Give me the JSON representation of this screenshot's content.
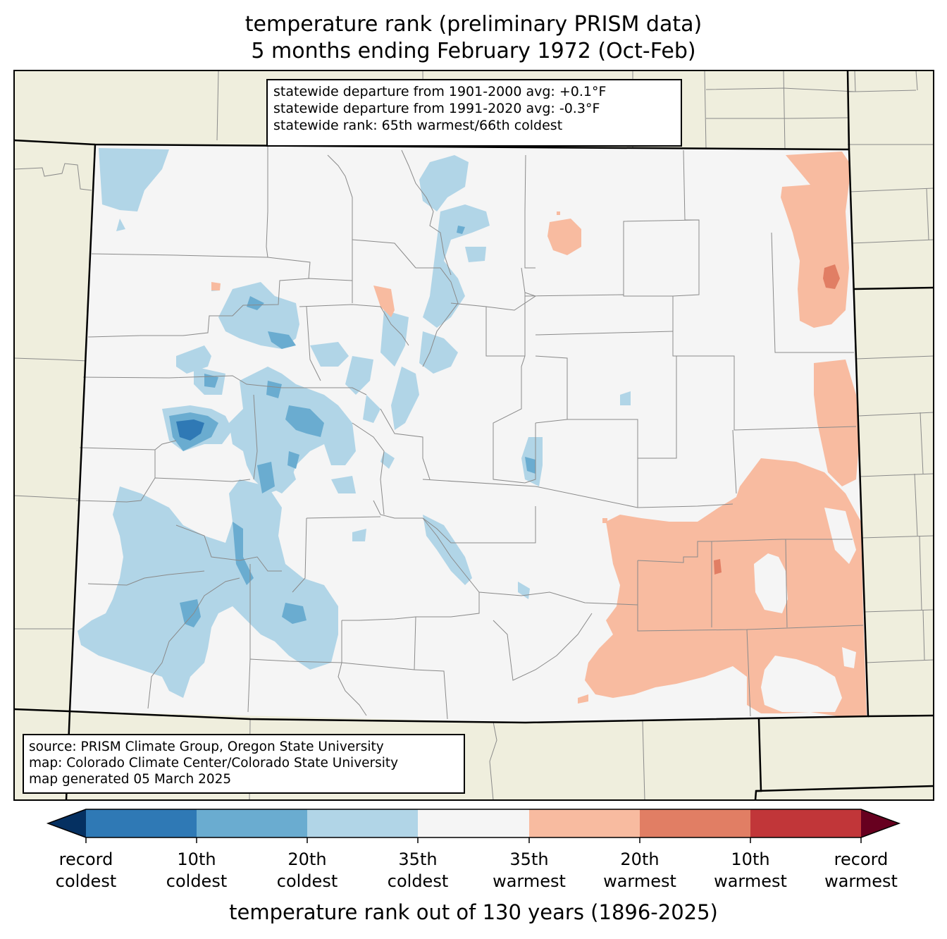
{
  "title": {
    "line1": "temperature rank (preliminary PRISM data)",
    "line2": "5 months ending February 1972 (Oct-Feb)"
  },
  "stats": {
    "line1": "statewide departure from 1901-2000 avg: +0.1°F",
    "line2": "statewide departure from 1991-2020 avg: -0.3°F",
    "line3": "statewide rank: 65th warmest/66th coldest"
  },
  "source": {
    "line1": "source: PRISM Climate Group, Oregon State University",
    "line2": "map: Colorado Climate Center/Colorado State University",
    "line3": "map generated 05 March 2025"
  },
  "colorbar": {
    "label": "temperature rank out of 130 years (1896-2025)",
    "colors": [
      "#053061",
      "#2f79b5",
      "#6aacd0",
      "#b1d5e7",
      "#f5f5f5",
      "#f8bba0",
      "#e17e64",
      "#c13639",
      "#67001f"
    ],
    "ticks": [
      {
        "line1": "record",
        "line2": "coldest"
      },
      {
        "line1": "10th",
        "line2": "coldest"
      },
      {
        "line1": "20th",
        "line2": "coldest"
      },
      {
        "line1": "35th",
        "line2": "coldest"
      },
      {
        "line1": "35th",
        "line2": "warmest"
      },
      {
        "line1": "20th",
        "line2": "warmest"
      },
      {
        "line1": "10th",
        "line2": "warmest"
      },
      {
        "line1": "record",
        "line2": "warmest"
      }
    ]
  },
  "map_colors": {
    "land_outside": "#efeedd",
    "state_fill": "#f5f5f5",
    "county_line": "#8a8a8a",
    "state_line": "#000000"
  }
}
